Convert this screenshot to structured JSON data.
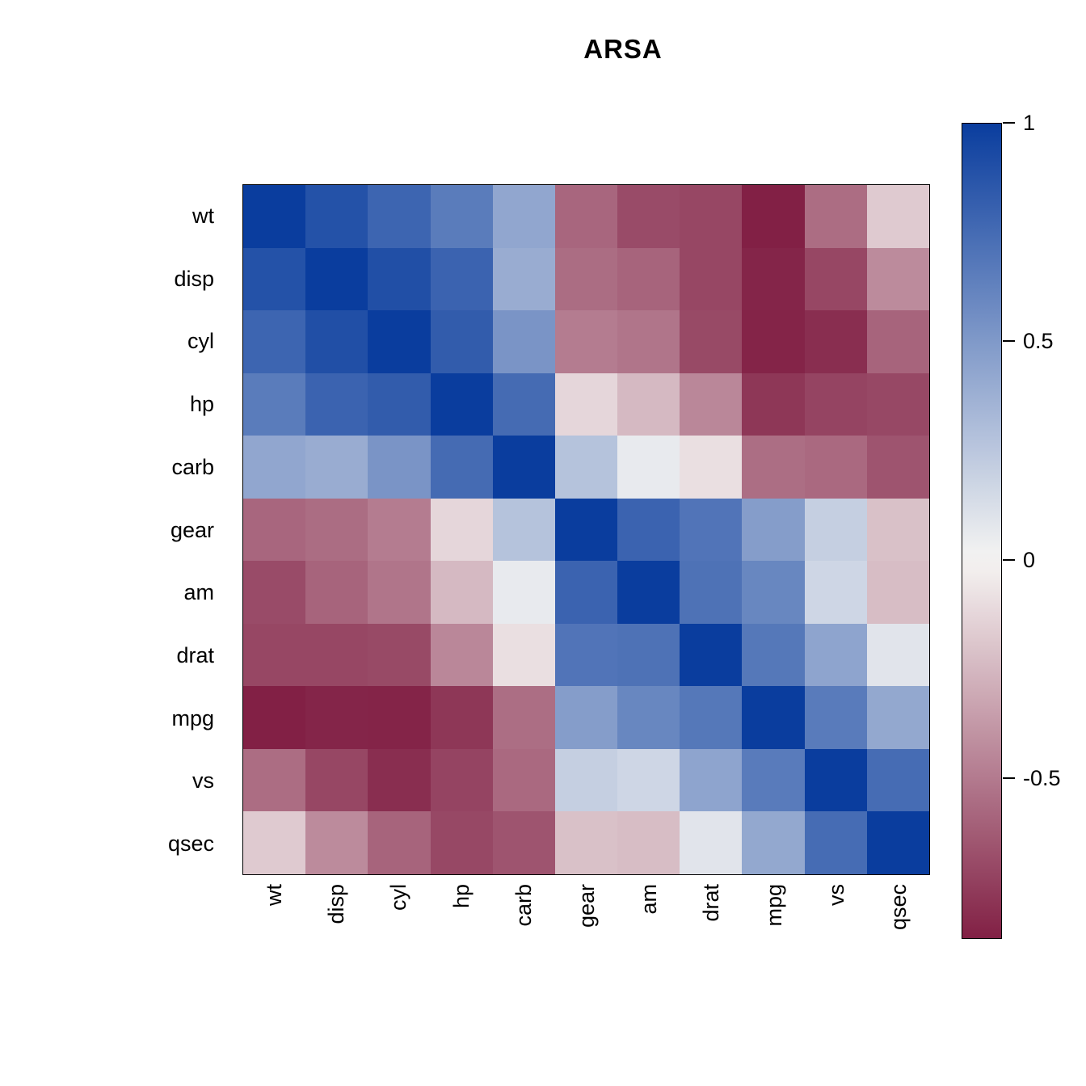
{
  "title": "ARSA",
  "chart_data": {
    "type": "heatmap",
    "title": "ARSA",
    "x_labels": [
      "wt",
      "disp",
      "cyl",
      "hp",
      "carb",
      "gear",
      "am",
      "drat",
      "mpg",
      "vs",
      "qsec"
    ],
    "y_labels": [
      "wt",
      "disp",
      "cyl",
      "hp",
      "carb",
      "gear",
      "am",
      "drat",
      "mpg",
      "vs",
      "qsec"
    ],
    "matrix": [
      [
        1.0,
        0.888,
        0.782,
        0.659,
        0.428,
        -0.583,
        -0.692,
        -0.712,
        -0.868,
        -0.555,
        -0.175
      ],
      [
        0.888,
        1.0,
        0.902,
        0.791,
        0.395,
        -0.556,
        -0.591,
        -0.71,
        -0.848,
        -0.71,
        -0.434
      ],
      [
        0.782,
        0.902,
        1.0,
        0.832,
        0.527,
        -0.493,
        -0.523,
        -0.7,
        -0.852,
        -0.811,
        -0.591
      ],
      [
        0.659,
        0.791,
        0.832,
        1.0,
        0.75,
        -0.126,
        -0.243,
        -0.449,
        -0.776,
        -0.723,
        -0.708
      ],
      [
        0.428,
        0.395,
        0.527,
        0.75,
        1.0,
        0.274,
        0.058,
        -0.091,
        -0.551,
        -0.57,
        -0.656
      ],
      [
        -0.583,
        -0.556,
        -0.493,
        -0.126,
        0.274,
        1.0,
        0.794,
        0.7,
        0.48,
        0.206,
        -0.213
      ],
      [
        -0.692,
        -0.591,
        -0.523,
        -0.243,
        0.058,
        0.794,
        1.0,
        0.713,
        0.6,
        0.168,
        -0.23
      ],
      [
        -0.712,
        -0.71,
        -0.7,
        -0.449,
        -0.091,
        0.7,
        0.713,
        1.0,
        0.681,
        0.44,
        0.091
      ],
      [
        -0.868,
        -0.848,
        -0.852,
        -0.776,
        -0.551,
        0.48,
        0.6,
        0.681,
        1.0,
        0.664,
        0.419
      ],
      [
        -0.555,
        -0.71,
        -0.811,
        -0.723,
        -0.57,
        0.206,
        0.168,
        0.44,
        0.664,
        1.0,
        0.745
      ],
      [
        -0.175,
        -0.434,
        -0.591,
        -0.708,
        -0.656,
        -0.213,
        -0.23,
        0.091,
        0.419,
        0.745,
        1.0
      ]
    ],
    "colorbar": {
      "min": -0.868,
      "max": 1,
      "ticks": [
        {
          "value": 1,
          "label": "1"
        },
        {
          "value": 0.5,
          "label": "0.5"
        },
        {
          "value": 0,
          "label": "0"
        },
        {
          "value": -0.5,
          "label": "-0.5"
        }
      ]
    },
    "colors": {
      "positive": "#0a3d9e",
      "zero": "#f6f5f3",
      "negative": "#70002a"
    },
    "legend_position": "right",
    "grid": false
  }
}
